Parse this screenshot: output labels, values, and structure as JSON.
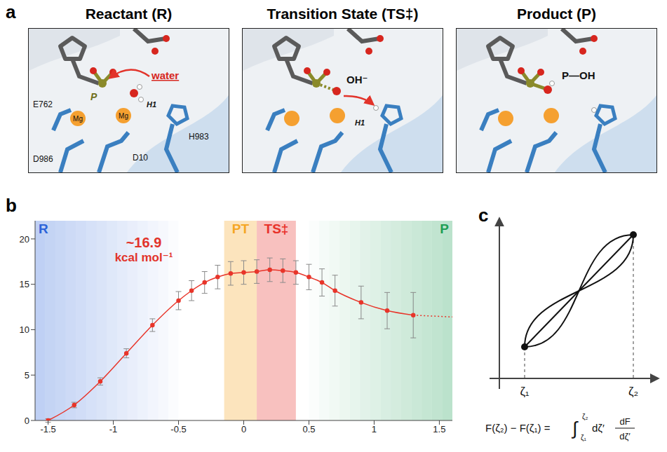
{
  "panel_a": {
    "letter": "a",
    "panels": [
      {
        "title": "Reactant (R)",
        "labels": {
          "phosphorus": "P",
          "nucleophile": "water",
          "proton": "H1",
          "residues": [
            "E762",
            "D986",
            "D10",
            "H983"
          ],
          "ions": [
            "Mg",
            "Mg"
          ]
        }
      },
      {
        "title": "Transition State (TS‡)",
        "labels": {
          "nucleophile": "OH⁻",
          "proton": "H1"
        }
      },
      {
        "title": "Product (P)",
        "labels": {
          "product": "P—OH"
        }
      }
    ]
  },
  "chart_data": {
    "letter": "b",
    "type": "line",
    "xlim": [
      -1.6,
      1.6
    ],
    "xticks": [
      -1.5,
      -1,
      -0.5,
      0,
      0.5,
      1,
      1.5
    ],
    "ylim": [
      0,
      22
    ],
    "yticks": [
      0,
      5,
      10,
      15,
      20
    ],
    "grid": false,
    "annotation": [
      "~16.9",
      "kcal mol⁻¹"
    ],
    "regions": [
      {
        "label": "R",
        "from": -1.6,
        "to": -0.5,
        "color": "#2b63d9"
      },
      {
        "label": "PT",
        "from": -0.15,
        "to": 0.1,
        "color": "#f5a623"
      },
      {
        "label": "TS‡",
        "from": 0.1,
        "to": 0.4,
        "color": "#e8322a"
      },
      {
        "label": "P",
        "from": 0.5,
        "to": 1.6,
        "color": "#1f9e55"
      }
    ],
    "series": [
      {
        "color": "#e8352a",
        "marker": "circle",
        "x": [
          -1.5,
          -1.3,
          -1.1,
          -0.9,
          -0.7,
          -0.5,
          -0.4,
          -0.3,
          -0.2,
          -0.1,
          0,
          0.1,
          0.2,
          0.3,
          0.4,
          0.5,
          0.6,
          0.7,
          0.9,
          1.1,
          1.3
        ],
        "values": [
          0,
          1.7,
          4.3,
          7.4,
          10.5,
          13.2,
          14.3,
          15.2,
          15.8,
          16.2,
          16.3,
          16.4,
          16.6,
          16.5,
          16.3,
          15.8,
          15.2,
          14.3,
          13.0,
          12.1,
          11.6
        ],
        "errors": [
          0.2,
          0.3,
          0.4,
          0.5,
          0.7,
          1.0,
          1.1,
          1.2,
          1.3,
          1.3,
          1.3,
          1.3,
          1.3,
          1.3,
          1.3,
          1.4,
          1.5,
          1.7,
          1.8,
          2.0,
          2.5
        ]
      },
      {
        "color": "#e8352a",
        "line_style": "dotted",
        "x": [
          1.3,
          1.6
        ],
        "values": [
          11.6,
          11.4
        ]
      }
    ]
  },
  "panel_c": {
    "letter": "c",
    "points": [
      "ζ₁",
      "ζ₂"
    ],
    "formula": {
      "lhs": "F(ζ₂) − F(ζ₁) =",
      "integral": "∫",
      "lower": "ζ₁",
      "upper": "ζ₂",
      "integrand": "dζ′",
      "numerator": "dF",
      "denominator": "dζ′"
    }
  }
}
